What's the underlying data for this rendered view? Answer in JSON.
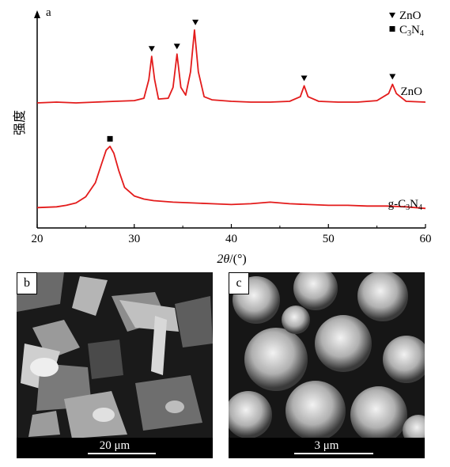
{
  "chart_data": {
    "type": "line",
    "panel_label": "a",
    "xlabel": "2θ/(°)",
    "ylabel": "强度",
    "xlim": [
      20,
      60
    ],
    "xticks": [
      20,
      30,
      40,
      50,
      60
    ],
    "legend": {
      "placement": "top-right",
      "entries": [
        {
          "marker": "triangle-down",
          "html": "ZnO"
        },
        {
          "marker": "square",
          "html": "C<tspan font-size='10' dy='3'>3</tspan><tspan dy='-3'>N</tspan><tspan font-size='10' dy='3'>4</tspan>"
        }
      ]
    },
    "line_color": "#e31b1b",
    "series": [
      {
        "name": "ZnO",
        "label_html": "ZnO",
        "baseline": 0.0,
        "points": [
          [
            20,
            0.0
          ],
          [
            22,
            0.01
          ],
          [
            24,
            0.0
          ],
          [
            26,
            0.01
          ],
          [
            28,
            0.02
          ],
          [
            30,
            0.03
          ],
          [
            31,
            0.06
          ],
          [
            31.5,
            0.3
          ],
          [
            31.8,
            0.6
          ],
          [
            32.1,
            0.3
          ],
          [
            32.5,
            0.05
          ],
          [
            33.5,
            0.06
          ],
          [
            34.0,
            0.2
          ],
          [
            34.4,
            0.63
          ],
          [
            34.8,
            0.2
          ],
          [
            35.3,
            0.1
          ],
          [
            35.8,
            0.4
          ],
          [
            36.2,
            0.94
          ],
          [
            36.6,
            0.4
          ],
          [
            37.2,
            0.08
          ],
          [
            38,
            0.04
          ],
          [
            40,
            0.02
          ],
          [
            42,
            0.01
          ],
          [
            44,
            0.01
          ],
          [
            46,
            0.02
          ],
          [
            47.1,
            0.08
          ],
          [
            47.5,
            0.22
          ],
          [
            47.9,
            0.08
          ],
          [
            49,
            0.02
          ],
          [
            51,
            0.01
          ],
          [
            53,
            0.01
          ],
          [
            55,
            0.03
          ],
          [
            56.2,
            0.12
          ],
          [
            56.6,
            0.24
          ],
          [
            57.0,
            0.12
          ],
          [
            58,
            0.02
          ],
          [
            60,
            0.01
          ]
        ],
        "peak_markers": [
          31.8,
          34.4,
          36.3,
          47.5,
          56.6
        ]
      },
      {
        "name": "g-C3N4",
        "label_html": "g-C<tspan font-size='10' dy='3'>3</tspan><tspan dy='-3'>N</tspan><tspan font-size='10' dy='3'>4</tspan>",
        "baseline": -1.35,
        "points": [
          [
            20,
            0.0
          ],
          [
            22,
            0.01
          ],
          [
            23,
            0.03
          ],
          [
            24,
            0.06
          ],
          [
            25,
            0.14
          ],
          [
            26,
            0.32
          ],
          [
            26.6,
            0.55
          ],
          [
            27.1,
            0.74
          ],
          [
            27.5,
            0.79
          ],
          [
            27.9,
            0.7
          ],
          [
            28.4,
            0.48
          ],
          [
            29,
            0.26
          ],
          [
            30,
            0.15
          ],
          [
            31,
            0.11
          ],
          [
            32,
            0.09
          ],
          [
            34,
            0.07
          ],
          [
            36,
            0.06
          ],
          [
            38,
            0.05
          ],
          [
            40,
            0.04
          ],
          [
            42,
            0.05
          ],
          [
            44,
            0.07
          ],
          [
            46,
            0.05
          ],
          [
            48,
            0.04
          ],
          [
            50,
            0.03
          ],
          [
            52,
            0.03
          ],
          [
            54,
            0.02
          ],
          [
            56,
            0.02
          ],
          [
            58,
            0.01
          ],
          [
            60,
            -0.01
          ]
        ],
        "peak_markers": [
          27.5
        ]
      }
    ]
  },
  "images": [
    {
      "label": "b",
      "scale_text": "20 μm"
    },
    {
      "label": "c",
      "scale_text": "3 μm"
    }
  ]
}
